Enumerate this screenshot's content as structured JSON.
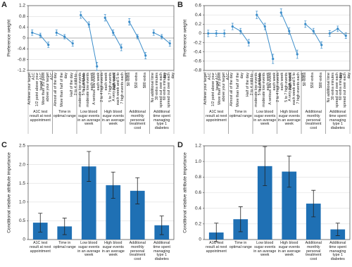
{
  "chart_data": [
    {
      "type": "line",
      "panel": "A",
      "ylabel": "Preference weight",
      "color": "#3b8dca",
      "grid": true,
      "ylim": [
        -1.2,
        1.2
      ],
      "yticks": [
        -1.2,
        -0.8,
        -0.4,
        0,
        0.4,
        0.8,
        1.2
      ],
      "groups": [
        {
          "name": "A1C test result at next appointment",
          "levels": [
            "Achieve your target A1C",
            "1/2 point above your target A1C",
            "More than 1/2 point above your target A1C"
          ],
          "values": [
            0.2,
            0.1,
            -0.25
          ],
          "errors": [
            0.1,
            0.08,
            0.1
          ]
        },
        {
          "name": "Time in optimal range",
          "levels": [
            "Almost all of the day",
            "More than half of the day",
            "Half of the day"
          ],
          "values": [
            0.2,
            0.05,
            -0.2
          ],
          "errors": [
            0.1,
            0.08,
            0.1
          ]
        },
        {
          "name": "Low blood sugar events in an average week",
          "levels": [
            "2 to 4 mild-to-moderate low events each week",
            "5 to 7 mild-to-moderate low events each week",
            "A serious low event each week"
          ],
          "values": [
            0.85,
            0.5,
            -1.05
          ],
          "errors": [
            0.12,
            0.1,
            0.15
          ]
        },
        {
          "name": "High blood sugar events in an average week",
          "levels": [
            "2 to 4 high events each week",
            "5 to 7 high events each week",
            "A very high event each week and 5 to 7 high events each week"
          ],
          "values": [
            0.75,
            0.2,
            -0.35
          ],
          "errors": [
            0.12,
            0.1,
            0.12
          ]
        },
        {
          "name": "Additional monthly personal treatment cost",
          "levels": [
            "$0 extra",
            "$50 extra",
            "$80 extra"
          ],
          "values": [
            0.6,
            0.05,
            -0.65
          ],
          "errors": [
            0.12,
            0.08,
            0.12
          ]
        },
        {
          "name": "Additional time spent managing type 1 diabetes",
          "levels": [
            "No additional time",
            "30 extra minutes spread out over each day",
            "60 extra minutes spread out over each day"
          ],
          "values": [
            0.2,
            0.05,
            -0.2
          ],
          "errors": [
            0.1,
            0.08,
            0.1
          ]
        }
      ]
    },
    {
      "type": "line",
      "panel": "B",
      "ylabel": "Preference weight",
      "color": "#3b8dca",
      "grid": true,
      "ylim": [
        -0.8,
        0.6
      ],
      "yticks": [
        -0.8,
        -0.6,
        -0.4,
        -0.2,
        0,
        0.2,
        0.4,
        0.6
      ],
      "groups": [
        {
          "name": "A1C test result at next appointment",
          "levels": [
            "Achieve your target A1C",
            "1/2 point above your target A1C",
            "More than 1/2 point above your target A1C"
          ],
          "values": [
            0.0,
            0.0,
            0.0
          ],
          "errors": [
            0.07,
            0.06,
            0.07
          ]
        },
        {
          "name": "Time in optimal range",
          "levels": [
            "Almost all of the day",
            "More than half of the day",
            "Half of the day"
          ],
          "values": [
            0.15,
            0.05,
            -0.2
          ],
          "errors": [
            0.07,
            0.06,
            0.07
          ]
        },
        {
          "name": "Low blood sugar events in an average week",
          "levels": [
            "2 to 4 mild-to-moderate low events each week",
            "5 to 7 mild-to-moderate low events each week",
            "A serious low event each week"
          ],
          "values": [
            0.4,
            0.15,
            -0.55
          ],
          "errors": [
            0.08,
            0.07,
            0.1
          ]
        },
        {
          "name": "High blood sugar events in an average week",
          "levels": [
            "2 to 4 high events each week",
            "5 to 7 high events each week",
            "A very high event each week and 5 to 7 high events each week"
          ],
          "values": [
            0.45,
            0.05,
            -0.45
          ],
          "errors": [
            0.08,
            0.07,
            0.09
          ]
        },
        {
          "name": "Additional monthly personal treatment cost",
          "levels": [
            "$0 extra",
            "$50 extra",
            "$80 extra"
          ],
          "values": [
            0.2,
            0.05,
            -0.25
          ],
          "errors": [
            0.07,
            0.06,
            0.07
          ]
        },
        {
          "name": "Additional time spent managing type 1 diabetes",
          "levels": [
            "No additional time",
            "30 extra minutes spread out over each day",
            "60 extra minutes spread out over each day"
          ],
          "values": [
            0.0,
            0.1,
            -0.05
          ],
          "errors": [
            0.06,
            0.06,
            0.06
          ]
        }
      ]
    },
    {
      "type": "bar",
      "panel": "C",
      "ylabel": "Conditional relative attribute importance",
      "color": "#1f70b4",
      "grid": true,
      "ylim": [
        0,
        2.5
      ],
      "yticks": [
        0,
        0.5,
        {
          "value": 1,
          "label": "1.0"
        },
        1.5,
        {
          "value": 2,
          "label": "2.0"
        },
        2.5
      ],
      "categories": [
        "A1C test result at next appointment",
        "Time in optimal range",
        "Low blood sugar events in an average week",
        "High blood sugar events in an average week",
        "Additional monthly personal treatment cost",
        "Additional time spent managing type 1 diabetes"
      ],
      "values": [
        0.45,
        0.35,
        1.95,
        1.45,
        1.3,
        0.38
      ],
      "errors": [
        0.25,
        0.22,
        0.4,
        0.35,
        0.35,
        0.25
      ]
    },
    {
      "type": "bar",
      "panel": "D",
      "ylabel": "Conditional relative attribute importance",
      "color": "#1f70b4",
      "grid": true,
      "ylim": [
        0,
        1.2
      ],
      "yticks": [
        0,
        0.2,
        0.4,
        0.6,
        0.8,
        {
          "value": 1,
          "label": "1.0"
        },
        1.2
      ],
      "categories": [
        "A1C test result at next appointment",
        "Time in optimal range",
        "Low blood sugar events in an average week",
        "High blood sugar events in an average week",
        "Additional monthly personal treatment cost",
        "Additional time spent managing type 1 diabetes"
      ],
      "values": [
        0.09,
        0.26,
        0.94,
        0.87,
        0.46,
        0.13
      ],
      "errors": [
        0.12,
        0.16,
        0.25,
        0.2,
        0.17,
        0.08
      ]
    }
  ]
}
